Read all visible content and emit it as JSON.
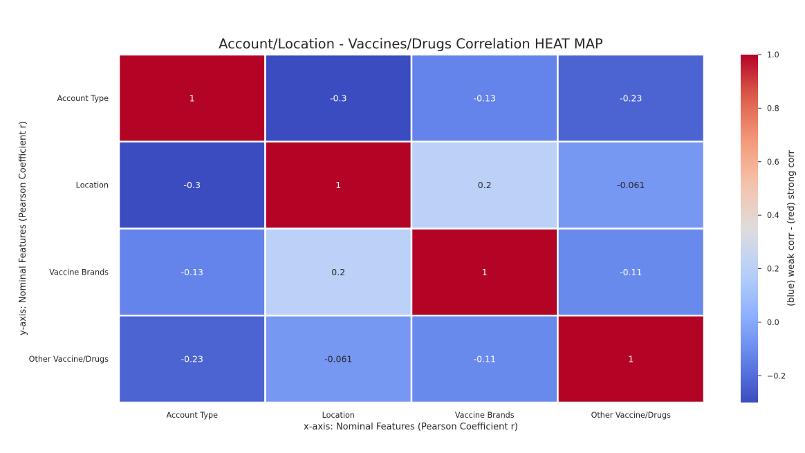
{
  "chart_data": {
    "type": "heatmap",
    "title": "Account/Location - Vaccines/Drugs Correlation HEAT MAP",
    "xlabel": "x-axis: Nominal Features (Pearson Coefficient r)",
    "ylabel": "y-axis: Nominal Features (Pearson Coefficient r)",
    "x_categories": [
      "Account Type",
      "Location",
      "Vaccine Brands",
      "Other Vaccine/Drugs"
    ],
    "y_categories": [
      "Account Type",
      "Location",
      "Vaccine Brands",
      "Other Vaccine/Drugs"
    ],
    "values": [
      [
        1,
        -0.3,
        -0.13,
        -0.23
      ],
      [
        -0.3,
        1,
        0.2,
        -0.061
      ],
      [
        -0.13,
        0.2,
        1,
        -0.11
      ],
      [
        -0.23,
        -0.061,
        -0.11,
        1
      ]
    ],
    "cell_labels": [
      [
        "1",
        "-0.3",
        "-0.13",
        "-0.23"
      ],
      [
        "-0.3",
        "1",
        "0.2",
        "-0.061"
      ],
      [
        "-0.13",
        "0.2",
        "1",
        "-0.11"
      ],
      [
        "-0.23",
        "-0.061",
        "-0.11",
        "1"
      ]
    ],
    "colorbar": {
      "label": "(blue) weak corr - (red) strong corr",
      "range": [
        -0.3,
        1.0
      ],
      "ticks": [
        -0.2,
        0.0,
        0.2,
        0.4,
        0.6,
        0.8,
        1.0
      ],
      "tick_labels": [
        "−0.2",
        "0.0",
        "0.2",
        "0.4",
        "0.6",
        "0.8",
        "1.0"
      ],
      "colormap": "coolwarm",
      "low_color": "#3b4cc0",
      "mid_color": "#dddcdc",
      "high_color": "#b40426"
    },
    "grid": false
  }
}
